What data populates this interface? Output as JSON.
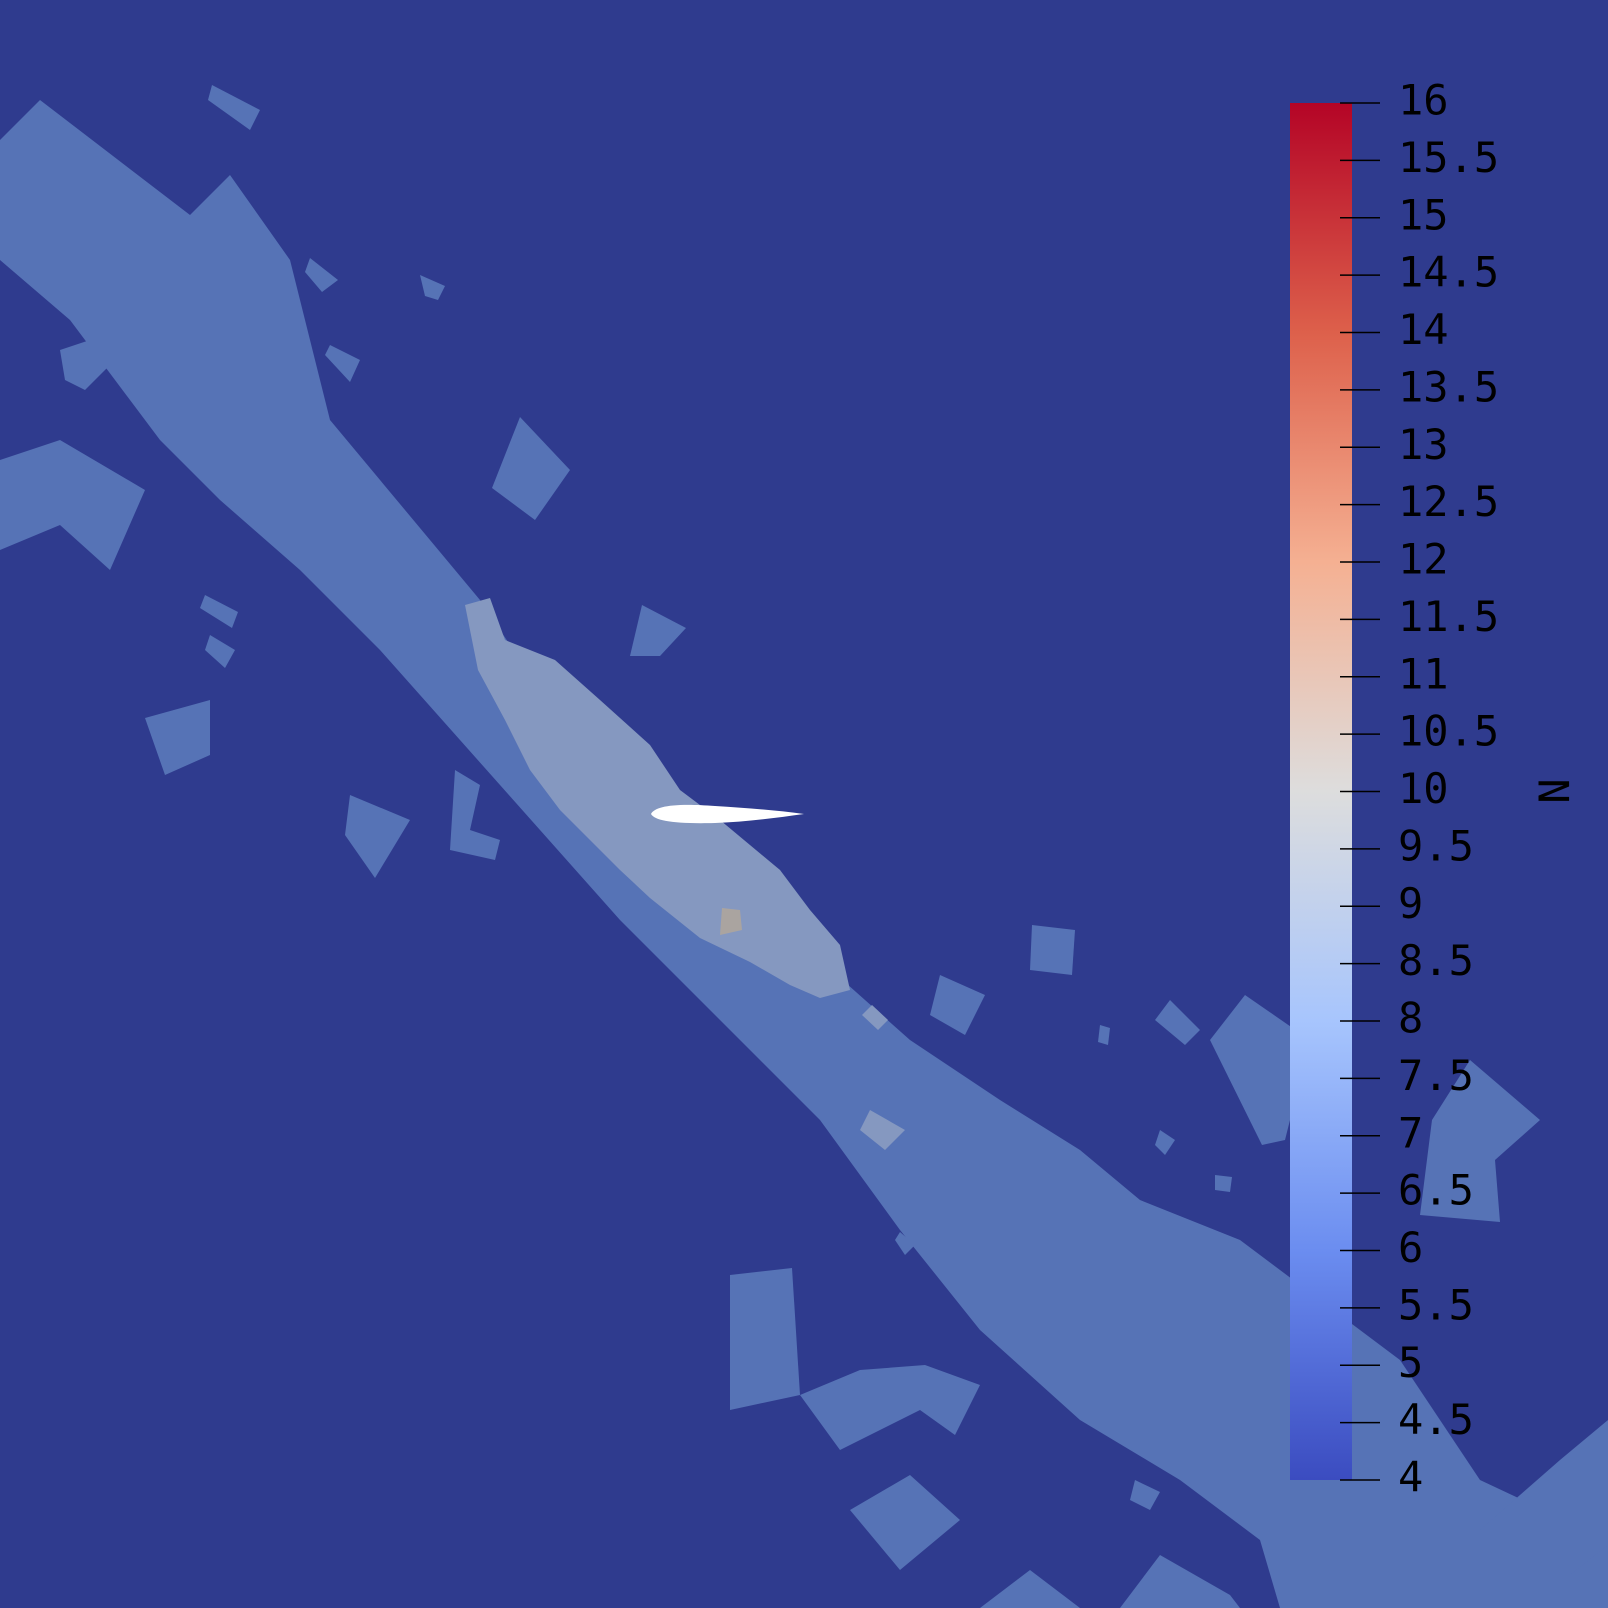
{
  "chart_data": {
    "type": "heatmap",
    "field": "N",
    "colorbar": {
      "title": "N",
      "min": 4,
      "max": 16,
      "ticks": [
        16,
        15.5,
        15,
        14.5,
        14,
        13.5,
        13,
        12.5,
        12,
        11.5,
        11,
        10.5,
        10,
        9.5,
        9,
        8.5,
        8,
        7.5,
        7,
        6.5,
        6,
        5.5,
        5,
        4.5,
        4
      ],
      "tick_labels": [
        "16",
        "15.5",
        "15",
        "14.5",
        "14",
        "13.5",
        "13",
        "12.5",
        "12",
        "11.5",
        "11",
        "10.5",
        "10",
        "9.5",
        "9",
        "8.5",
        "8",
        "7.5",
        "7",
        "6.5",
        "6",
        "5.5",
        "5",
        "4.5",
        "4"
      ],
      "colormap": "coolwarm",
      "colors": [
        "#3b4cc0",
        "#6b8df0",
        "#a7c5fd",
        "#dddddd",
        "#f5b092",
        "#dd604b",
        "#b40426"
      ],
      "placement": "right"
    },
    "field_levels": {
      "background": 4,
      "wake_outer": 5.5,
      "wake_inner": 7.5,
      "hot_spot": 10.5
    },
    "colors": {
      "background": "#2f3b8e",
      "wake_outer": "#5673b6",
      "wake_inner": "#8598c0",
      "hot_spot": "#aaa4a0",
      "airfoil": "#ffffff"
    }
  }
}
